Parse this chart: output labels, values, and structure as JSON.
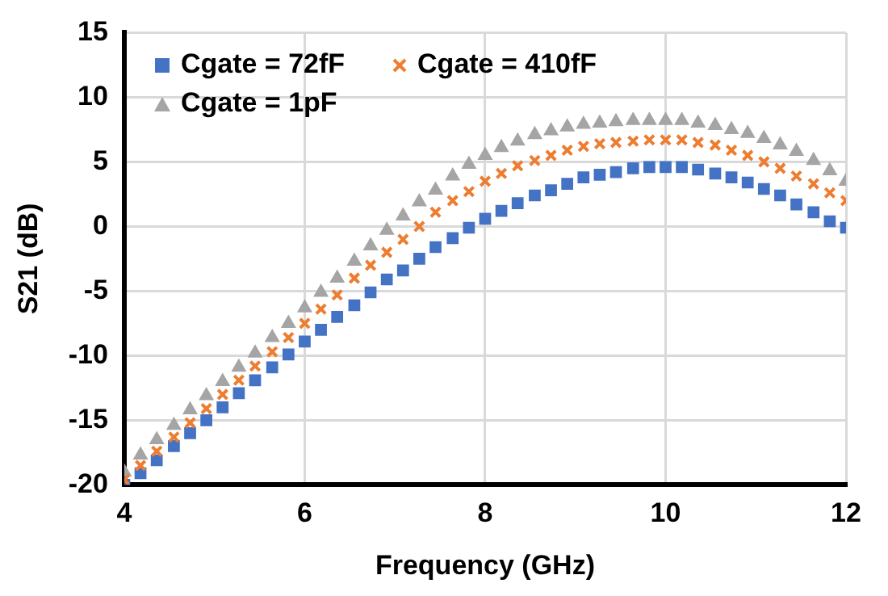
{
  "chart_data": {
    "type": "scatter",
    "xlabel": "Frequency (GHz)",
    "ylabel": "S21 (dB)",
    "x": [
      4,
      4.18,
      4.36,
      4.55,
      4.73,
      4.91,
      5.09,
      5.27,
      5.45,
      5.64,
      5.82,
      6,
      6.18,
      6.36,
      6.55,
      6.73,
      6.91,
      7.09,
      7.27,
      7.45,
      7.64,
      7.82,
      8,
      8.18,
      8.36,
      8.55,
      8.73,
      8.91,
      9.09,
      9.27,
      9.45,
      9.64,
      9.82,
      10,
      10.18,
      10.36,
      10.55,
      10.73,
      10.91,
      11.09,
      11.27,
      11.45,
      11.64,
      11.82,
      12
    ],
    "series": [
      {
        "name": "Cgate = 72fF",
        "color": "#4472c4",
        "marker": "square",
        "values": [
          -20,
          -19.1,
          -18.1,
          -17.0,
          -16.0,
          -15.0,
          -14.0,
          -12.9,
          -11.9,
          -10.9,
          -9.9,
          -8.9,
          -8.0,
          -7.0,
          -6.1,
          -5.1,
          -4.1,
          -3.4,
          -2.5,
          -1.6,
          -0.9,
          -0.1,
          0.6,
          1.2,
          1.8,
          2.4,
          2.8,
          3.3,
          3.8,
          4.0,
          4.2,
          4.5,
          4.6,
          4.6,
          4.6,
          4.4,
          4.1,
          3.8,
          3.4,
          2.9,
          2.4,
          1.7,
          1.1,
          0.4,
          -0.1
        ]
      },
      {
        "name": "Cgate = 410fF",
        "color": "#ed7d31",
        "marker": "cross",
        "values": [
          -19.6,
          -18.5,
          -17.4,
          -16.3,
          -15.2,
          -14.1,
          -13.0,
          -11.9,
          -10.8,
          -9.7,
          -8.6,
          -7.5,
          -6.4,
          -5.3,
          -4.0,
          -3.0,
          -2.0,
          -1.0,
          0,
          1.1,
          2.0,
          2.7,
          3.5,
          4.1,
          4.7,
          5.1,
          5.5,
          5.9,
          6.2,
          6.4,
          6.5,
          6.6,
          6.7,
          6.7,
          6.7,
          6.5,
          6.3,
          5.9,
          5.5,
          5.0,
          4.5,
          3.9,
          3.3,
          2.6,
          2.0
        ]
      },
      {
        "name": "Cgate = 1pF",
        "color": "#a5a5a5",
        "marker": "triangle",
        "values": [
          -19.0,
          -17.7,
          -16.5,
          -15.4,
          -14.2,
          -13.1,
          -12.0,
          -10.9,
          -9.8,
          -8.6,
          -7.5,
          -6.3,
          -5.1,
          -4.0,
          -2.7,
          -1.5,
          -0.3,
          0.8,
          1.9,
          2.8,
          3.9,
          4.8,
          5.5,
          6.1,
          6.6,
          7.1,
          7.4,
          7.7,
          7.9,
          8.0,
          8.1,
          8.2,
          8.2,
          8.2,
          8.2,
          8.0,
          7.8,
          7.5,
          7.2,
          6.8,
          6.3,
          5.8,
          5.1,
          4.3,
          3.5
        ]
      }
    ],
    "xlim": [
      4,
      12
    ],
    "xticks": [
      4,
      6,
      8,
      10,
      12
    ],
    "ylim": [
      -20,
      15
    ],
    "yticks": [
      -20,
      -15,
      -10,
      -5,
      0,
      5,
      10,
      15
    ],
    "grid": true,
    "legend": "top left"
  }
}
